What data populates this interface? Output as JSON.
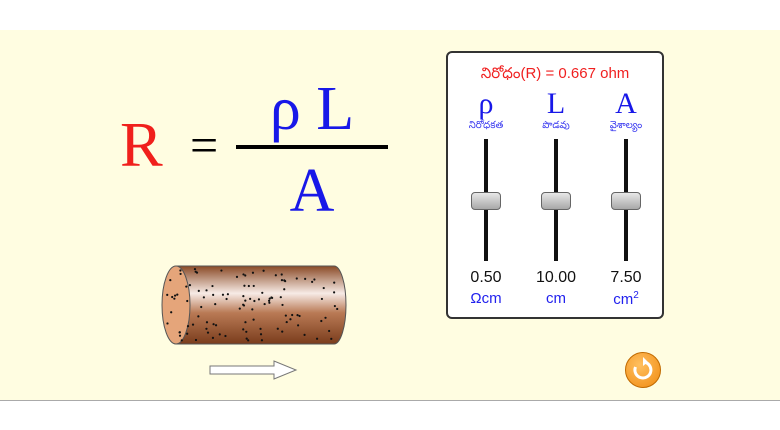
{
  "equation": {
    "lhs": "R",
    "equals": "=",
    "numerator": "ρ L",
    "denominator": "A"
  },
  "panel": {
    "title": "నిరోధం(R) = 0.667 ohm",
    "sliders": [
      {
        "symbol": "ρ",
        "label": "నిరోధకత",
        "value": "0.50",
        "unit": "Ωcm",
        "level": 0.5
      },
      {
        "symbol": "L",
        "label": "పొడవు",
        "value": "10.00",
        "unit": "cm",
        "level": 0.5
      },
      {
        "symbol": "A",
        "label": "వైశాల్యం",
        "value": "7.50",
        "unit": "cm",
        "unit_sup": "2",
        "level": 0.5
      }
    ]
  },
  "icons": {
    "reset": "reset-icon",
    "arrow": "current-direction-arrow-icon"
  },
  "colors": {
    "background": "#fffde1",
    "resistance": "#f02020",
    "symbols": "#1818e8",
    "reset": "#f08a10"
  }
}
